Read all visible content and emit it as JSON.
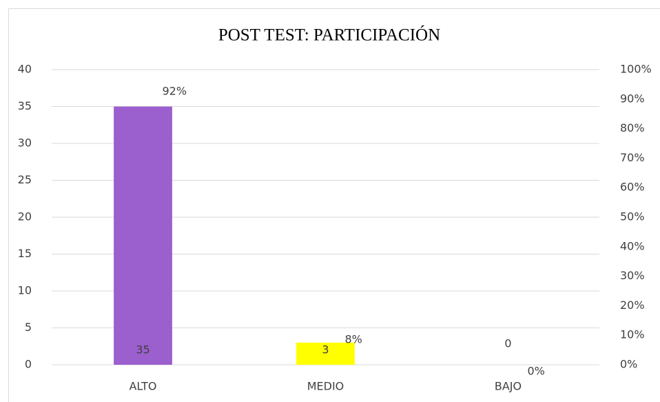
{
  "chart_data": {
    "type": "bar",
    "title": "POST TEST: PARTICIPACIÓN",
    "categories": [
      "ALTO",
      "MEDIO",
      "BAJO"
    ],
    "series": [
      {
        "values": [
          35,
          3,
          0
        ],
        "colors": [
          "#9b5fce",
          "#ffff00",
          "#a5a5a5"
        ]
      },
      {
        "values": [
          92,
          8,
          0
        ],
        "value_labels": [
          "92%",
          "8%",
          "0%"
        ],
        "axis": "y2"
      }
    ],
    "ylim": [
      0,
      40
    ],
    "yticks": [
      0,
      5,
      10,
      15,
      20,
      25,
      30,
      35,
      40
    ],
    "y2lim": [
      0,
      100
    ],
    "y2ticks": [
      {
        "value": 0,
        "label": "0%"
      },
      {
        "value": 10,
        "label": "10%"
      },
      {
        "value": 20,
        "label": "20%"
      },
      {
        "value": 30,
        "label": "30%"
      },
      {
        "value": 40,
        "label": "40%"
      },
      {
        "value": 50,
        "label": "50%"
      },
      {
        "value": 60,
        "label": "60%"
      },
      {
        "value": 70,
        "label": "70%"
      },
      {
        "value": 80,
        "label": "80%"
      },
      {
        "value": 90,
        "label": "90%"
      },
      {
        "value": 100,
        "label": "100%"
      }
    ],
    "grid": true
  }
}
